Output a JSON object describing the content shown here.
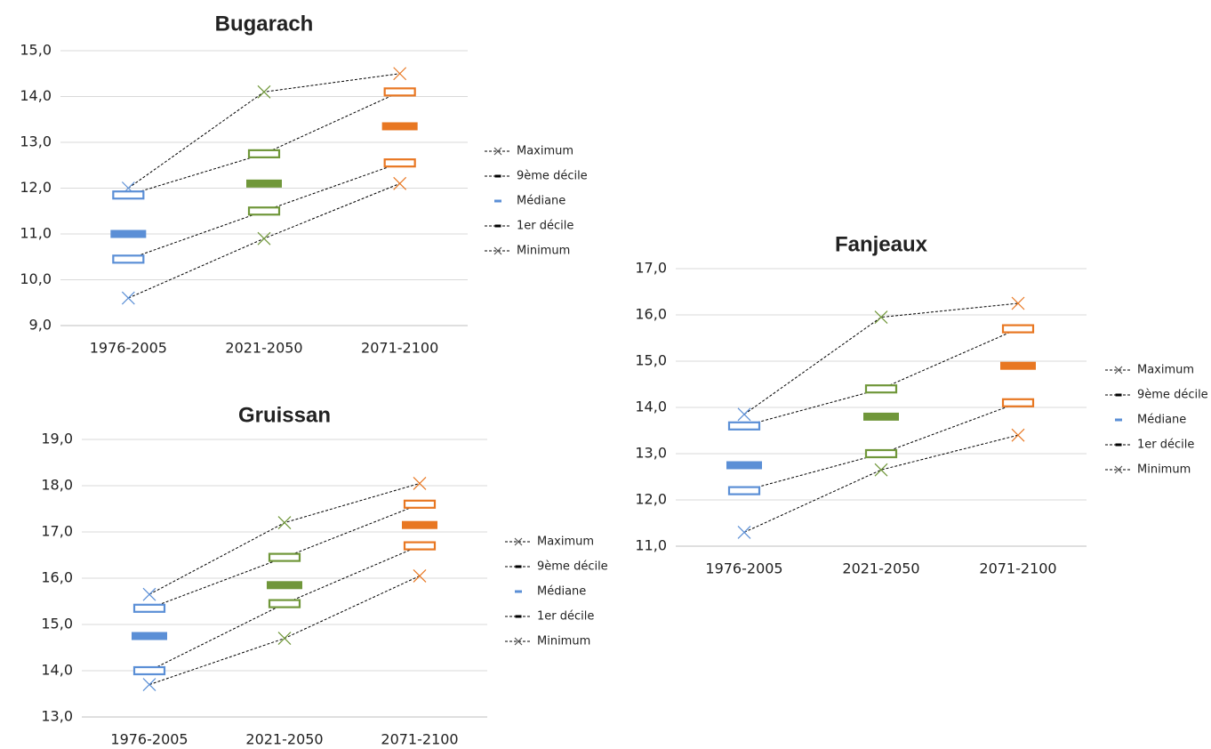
{
  "chart_data": [
    {
      "type": "line",
      "title": "Bugarach",
      "categories": [
        "1976-2005",
        "2021-2050",
        "2071-2100"
      ],
      "point_colors": [
        "#5b8fd6",
        "#70973a",
        "#e87722"
      ],
      "series": [
        {
          "name": "Maximum",
          "marker": "x",
          "line": true,
          "values": [
            12.0,
            14.1,
            14.5
          ]
        },
        {
          "name": "9ème décile",
          "marker": "box",
          "line": true,
          "values": [
            11.85,
            12.75,
            14.1
          ]
        },
        {
          "name": "Médiane",
          "marker": "bar",
          "line": false,
          "values": [
            11.0,
            12.1,
            13.35
          ]
        },
        {
          "name": "1er décile",
          "marker": "box",
          "line": true,
          "values": [
            10.45,
            11.5,
            12.55
          ]
        },
        {
          "name": "Minimum",
          "marker": "x",
          "line": true,
          "values": [
            9.6,
            10.9,
            12.1
          ]
        }
      ],
      "ylim": [
        9,
        15
      ],
      "yticks": [
        {
          "value": 9,
          "label": "9,0"
        },
        {
          "value": 10,
          "label": "10,0"
        },
        {
          "value": 11,
          "label": "11,0"
        },
        {
          "value": 12,
          "label": "12,0"
        },
        {
          "value": 13,
          "label": "13,0"
        },
        {
          "value": 14,
          "label": "14,0"
        },
        {
          "value": 15,
          "label": "15,0"
        }
      ],
      "grid": true,
      "legend": "right"
    },
    {
      "type": "line",
      "title": "Fanjeaux",
      "categories": [
        "1976-2005",
        "2021-2050",
        "2071-2100"
      ],
      "point_colors": [
        "#5b8fd6",
        "#70973a",
        "#e87722"
      ],
      "series": [
        {
          "name": "Maximum",
          "marker": "x",
          "line": true,
          "values": [
            13.85,
            15.95,
            16.25
          ]
        },
        {
          "name": "9ème décile",
          "marker": "box",
          "line": true,
          "values": [
            13.6,
            14.4,
            15.7
          ]
        },
        {
          "name": "Médiane",
          "marker": "bar",
          "line": false,
          "values": [
            12.75,
            13.8,
            14.9
          ]
        },
        {
          "name": "1er décile",
          "marker": "box",
          "line": true,
          "values": [
            12.2,
            13.0,
            14.1
          ]
        },
        {
          "name": "Minimum",
          "marker": "x",
          "line": true,
          "values": [
            11.3,
            12.65,
            13.4
          ]
        }
      ],
      "ylim": [
        11,
        17
      ],
      "yticks": [
        {
          "value": 11,
          "label": "11,0"
        },
        {
          "value": 12,
          "label": "12,0"
        },
        {
          "value": 13,
          "label": "13,0"
        },
        {
          "value": 14,
          "label": "14,0"
        },
        {
          "value": 15,
          "label": "15,0"
        },
        {
          "value": 16,
          "label": "16,0"
        },
        {
          "value": 17,
          "label": "17,0"
        }
      ],
      "grid": true,
      "legend": "right"
    },
    {
      "type": "line",
      "title": "Gruissan",
      "categories": [
        "1976-2005",
        "2021-2050",
        "2071-2100"
      ],
      "point_colors": [
        "#5b8fd6",
        "#70973a",
        "#e87722"
      ],
      "series": [
        {
          "name": "Maximum",
          "marker": "x",
          "line": true,
          "values": [
            15.65,
            17.2,
            18.05
          ]
        },
        {
          "name": "9ème décile",
          "marker": "box",
          "line": true,
          "values": [
            15.35,
            16.45,
            17.6
          ]
        },
        {
          "name": "Médiane",
          "marker": "bar",
          "line": false,
          "values": [
            14.75,
            15.85,
            17.15
          ]
        },
        {
          "name": "1er décile",
          "marker": "box",
          "line": true,
          "values": [
            14.0,
            15.45,
            16.7
          ]
        },
        {
          "name": "Minimum",
          "marker": "x",
          "line": true,
          "values": [
            13.7,
            14.7,
            16.05
          ]
        }
      ],
      "ylim": [
        13,
        19
      ],
      "yticks": [
        {
          "value": 13,
          "label": "13,0"
        },
        {
          "value": 14,
          "label": "14,0"
        },
        {
          "value": 15,
          "label": "15,0"
        },
        {
          "value": 16,
          "label": "16,0"
        },
        {
          "value": 17,
          "label": "17,0"
        },
        {
          "value": 18,
          "label": "18,0"
        },
        {
          "value": 19,
          "label": "19,0"
        }
      ],
      "grid": true,
      "legend": "right"
    }
  ]
}
